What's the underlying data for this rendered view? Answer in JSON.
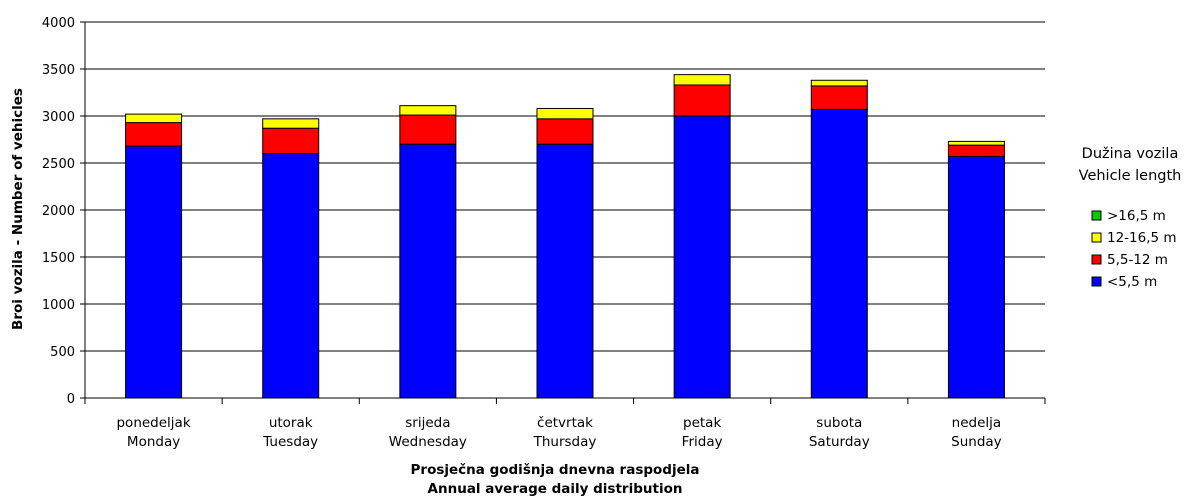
{
  "chart_data": {
    "type": "bar",
    "stacked": true,
    "ylabel": "Broi vozila - Number of vehicles",
    "xlabel": [
      "Prosječna godišnja dnevna raspodjela",
      "Annual average daily distribution"
    ],
    "ylim": [
      0,
      4000
    ],
    "yticks": [
      0,
      500,
      1000,
      1500,
      2000,
      2500,
      3000,
      3500,
      4000
    ],
    "grid": true,
    "legend_position": "right",
    "categories": [
      [
        "ponedeljak",
        "Monday"
      ],
      [
        "utorak",
        "Tuesday"
      ],
      [
        "srijeda",
        "Wednesday"
      ],
      [
        "četvrtak",
        "Thursday"
      ],
      [
        "petak",
        "Friday"
      ],
      [
        "subota",
        "Saturday"
      ],
      [
        "nedelja",
        "Sunday"
      ]
    ],
    "legend_title": [
      "Dužina vozila",
      "Vehicle length"
    ],
    "series": [
      {
        "name": "<5,5 m",
        "color": "#0000ff",
        "values": [
          2680,
          2600,
          2700,
          2700,
          3000,
          3070,
          2570
        ]
      },
      {
        "name": "5,5-12 m",
        "color": "#ff0000",
        "values": [
          250,
          270,
          310,
          270,
          330,
          250,
          120
        ]
      },
      {
        "name": "12-16,5 m",
        "color": "#ffff00",
        "values": [
          90,
          100,
          100,
          110,
          110,
          60,
          40
        ]
      },
      {
        "name": ">16,5 m",
        "color": "#00cc00",
        "values": [
          0,
          0,
          0,
          0,
          0,
          0,
          0
        ]
      }
    ]
  }
}
